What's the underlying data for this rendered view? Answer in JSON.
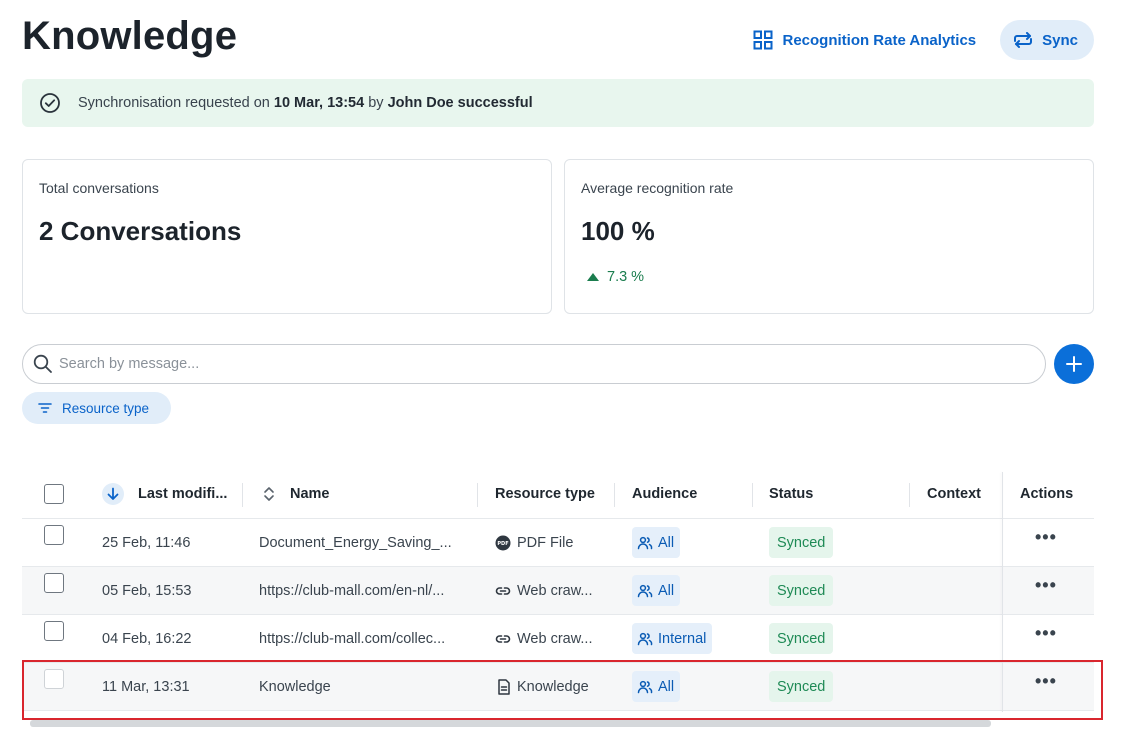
{
  "page": {
    "title": "Knowledge"
  },
  "header": {
    "analytics_label": "Recognition Rate Analytics",
    "sync_label": "Sync"
  },
  "banner": {
    "prefix": "Synchronisation requested on ",
    "date": "10 Mar, 13:54",
    "middle": " by ",
    "user_status": "John Doe successful"
  },
  "stats": {
    "conversations": {
      "label": "Total conversations",
      "value": "2 Conversations"
    },
    "recognition": {
      "label": "Average recognition rate",
      "value": "100 %",
      "trend": "7.3 %"
    }
  },
  "search": {
    "placeholder": "Search by message..."
  },
  "filter": {
    "label": "Resource type"
  },
  "table": {
    "columns": {
      "last_modified": "Last modifi...",
      "name": "Name",
      "resource_type": "Resource type",
      "audience": "Audience",
      "status": "Status",
      "context": "Context",
      "actions": "Actions"
    },
    "rows": [
      {
        "modified": "25 Feb, 11:46",
        "name": "Document_Energy_Saving_...",
        "type": "PDF File",
        "type_icon": "pdf-icon",
        "audience": "All",
        "status": "Synced"
      },
      {
        "modified": "05 Feb, 15:53",
        "name": "https://club-mall.com/en-nl/...",
        "type": "Web craw...",
        "type_icon": "link-icon",
        "audience": "All",
        "status": "Synced"
      },
      {
        "modified": "04 Feb, 16:22",
        "name": "https://club-mall.com/collec...",
        "type": "Web craw...",
        "type_icon": "link-icon",
        "audience": "Internal",
        "status": "Synced"
      },
      {
        "modified": "11 Mar, 13:31",
        "name": "Knowledge",
        "type": "Knowledge",
        "type_icon": "document-icon",
        "audience": "All",
        "status": "Synced"
      }
    ],
    "more_label": "•••"
  },
  "colors": {
    "accent": "#0a63c9",
    "success": "#1e8a55",
    "highlight": "#d9262e"
  }
}
